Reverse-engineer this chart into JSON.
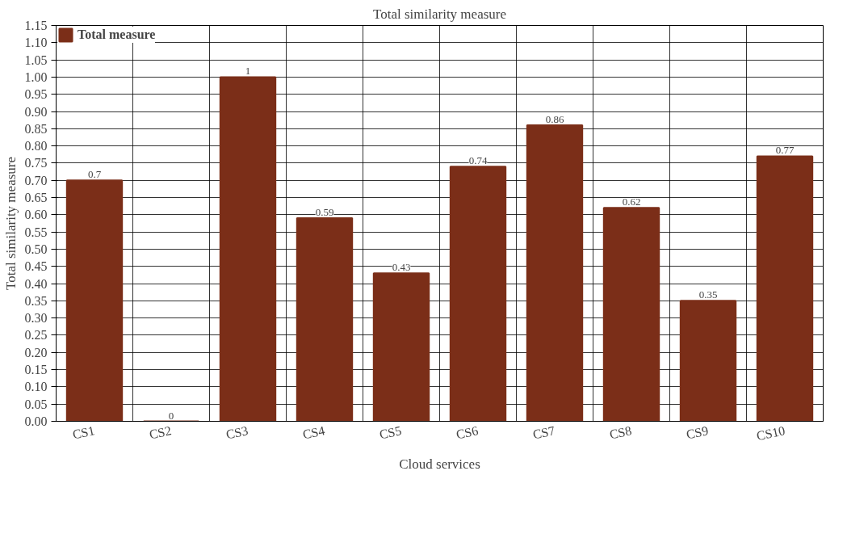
{
  "chart_data": {
    "type": "bar",
    "title": "Total similarity measure",
    "xlabel": "Cloud services",
    "ylabel": "Total similarity measure",
    "categories": [
      "CS1",
      "CS2",
      "CS3",
      "CS4",
      "CS5",
      "CS6",
      "CS7",
      "CS8",
      "CS9",
      "CS10"
    ],
    "series": [
      {
        "name": "Total measure",
        "color": "#7b2e18",
        "values": [
          0.7,
          0,
          1,
          0.59,
          0.43,
          0.74,
          0.86,
          0.62,
          0.35,
          0.77
        ]
      }
    ],
    "ylim": [
      0,
      1.15
    ],
    "yticks": [
      {
        "value": 0,
        "label": "0.00"
      },
      {
        "value": 0.05,
        "label": "0.05"
      },
      {
        "value": 0.1,
        "label": "0.10"
      },
      {
        "value": 0.15,
        "label": "0.15"
      },
      {
        "value": 0.2,
        "label": "0.20"
      },
      {
        "value": 0.25,
        "label": "0.25"
      },
      {
        "value": 0.3,
        "label": "0.30"
      },
      {
        "value": 0.35,
        "label": "0.35"
      },
      {
        "value": 0.4,
        "label": "0.40"
      },
      {
        "value": 0.45,
        "label": "0.45"
      },
      {
        "value": 0.5,
        "label": "0.50"
      },
      {
        "value": 0.55,
        "label": "0.55"
      },
      {
        "value": 0.6,
        "label": "0.60"
      },
      {
        "value": 0.65,
        "label": "0.65"
      },
      {
        "value": 0.7,
        "label": "0.70"
      },
      {
        "value": 0.75,
        "label": "0.75"
      },
      {
        "value": 0.8,
        "label": "0.80"
      },
      {
        "value": 0.85,
        "label": "0.85"
      },
      {
        "value": 0.9,
        "label": "0.90"
      },
      {
        "value": 0.95,
        "label": "0.95"
      },
      {
        "value": 1.0,
        "label": "1.00"
      },
      {
        "value": 1.05,
        "label": "1.05"
      },
      {
        "value": 1.1,
        "label": "1.10"
      },
      {
        "value": 1.15,
        "label": "1.15"
      }
    ],
    "grid": true,
    "legend": "top left",
    "data_labels": true
  }
}
